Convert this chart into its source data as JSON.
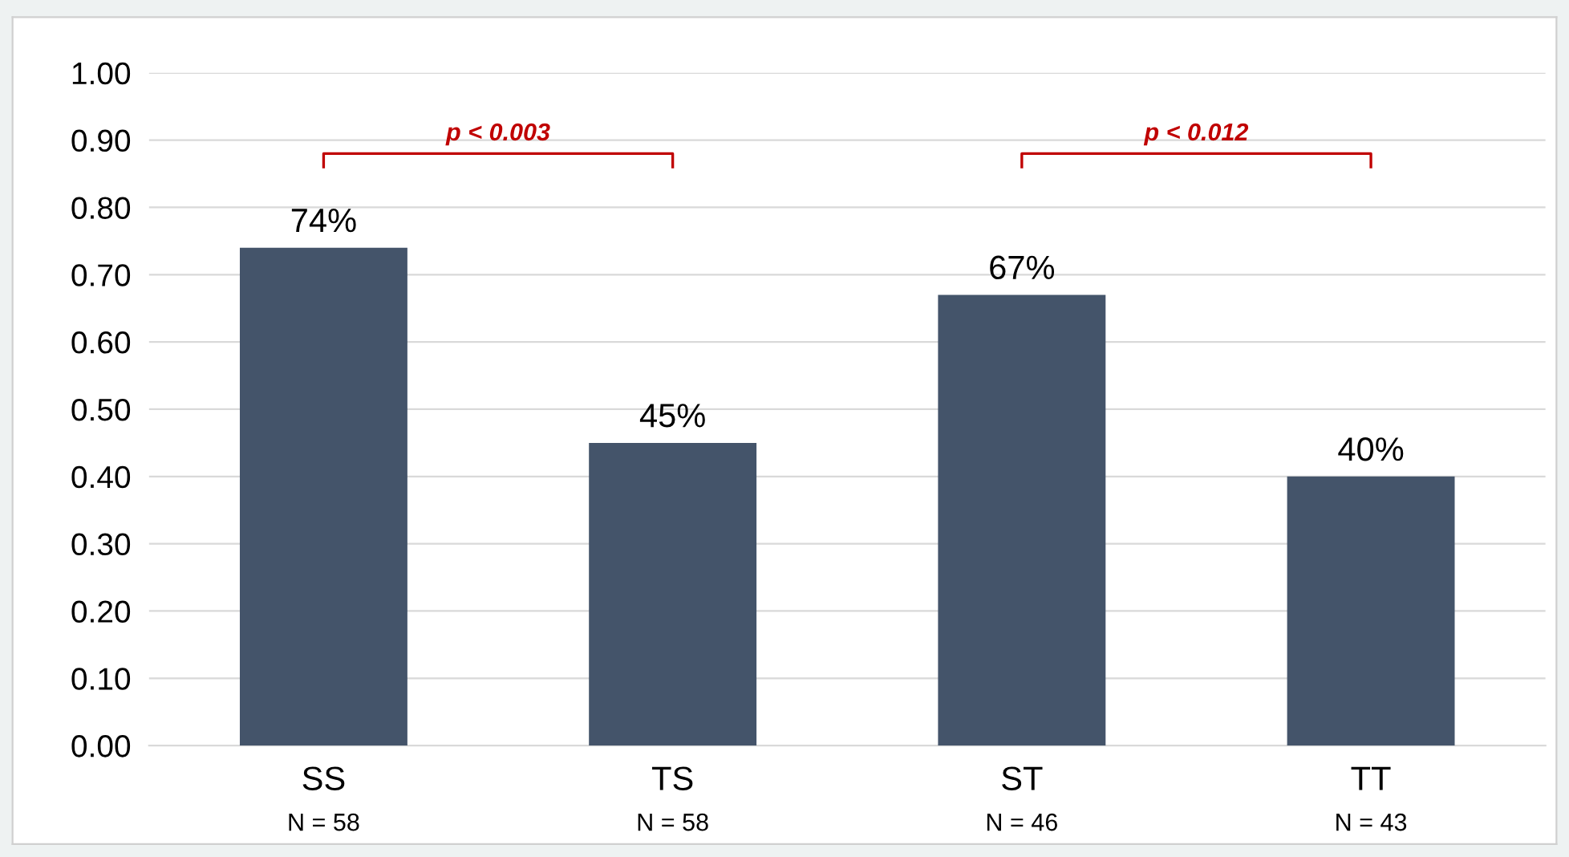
{
  "chart_data": {
    "type": "bar",
    "categories": [
      "SS\nN = 58",
      "TS\nN = 58",
      "ST\nN = 46",
      "TT\nN = 43"
    ],
    "values": [
      0.74,
      0.45,
      0.67,
      0.4
    ],
    "value_labels": [
      "74%",
      "45%",
      "67%",
      "40%"
    ],
    "color": "#44546a",
    "ylim": [
      0,
      1.0
    ],
    "yticks": [
      {
        "value": 0,
        "label": "0.00"
      },
      {
        "value": 0.1,
        "label": "0.10"
      },
      {
        "value": 0.2,
        "label": "0.20"
      },
      {
        "value": 0.3,
        "label": "0.30"
      },
      {
        "value": 0.4,
        "label": "0.40"
      },
      {
        "value": 0.5,
        "label": "0.50"
      },
      {
        "value": 0.6,
        "label": "0.60"
      },
      {
        "value": 0.7,
        "label": "0.70"
      },
      {
        "value": 0.8,
        "label": "0.80"
      },
      {
        "value": 0.9,
        "label": "0.90"
      },
      {
        "value": 1.0,
        "label": "1.00"
      }
    ],
    "grid": "y",
    "annotations": [
      "p < 0.003",
      "p < 0.012"
    ]
  }
}
